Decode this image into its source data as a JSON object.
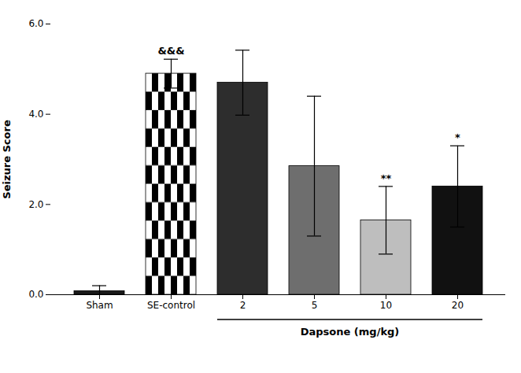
{
  "chart_data": {
    "type": "bar",
    "categories": [
      "Sham",
      "SE-control",
      "2",
      "5",
      "10",
      "20"
    ],
    "values": [
      0.08,
      4.9,
      4.7,
      2.85,
      1.65,
      2.4
    ],
    "errors": [
      0.12,
      0.32,
      0.72,
      1.55,
      0.75,
      0.9
    ],
    "colors": [
      "#1a1a1a",
      "checkerboard",
      "#2d2d2d",
      "#6e6e6e",
      "#bebebe",
      "#111111"
    ],
    "ylabel": "Seizure Score",
    "ylim": [
      0,
      6
    ],
    "yticks": [
      0,
      2,
      4,
      6
    ],
    "annotations": [
      {
        "category": "SE-control",
        "text": "&&&"
      },
      {
        "category": "10",
        "text": "**"
      },
      {
        "category": "20",
        "text": "*"
      },
      {
        "categories": [
          "2",
          "5",
          "10",
          "20"
        ],
        "text": "Dapsone (mg/kg)"
      }
    ]
  }
}
